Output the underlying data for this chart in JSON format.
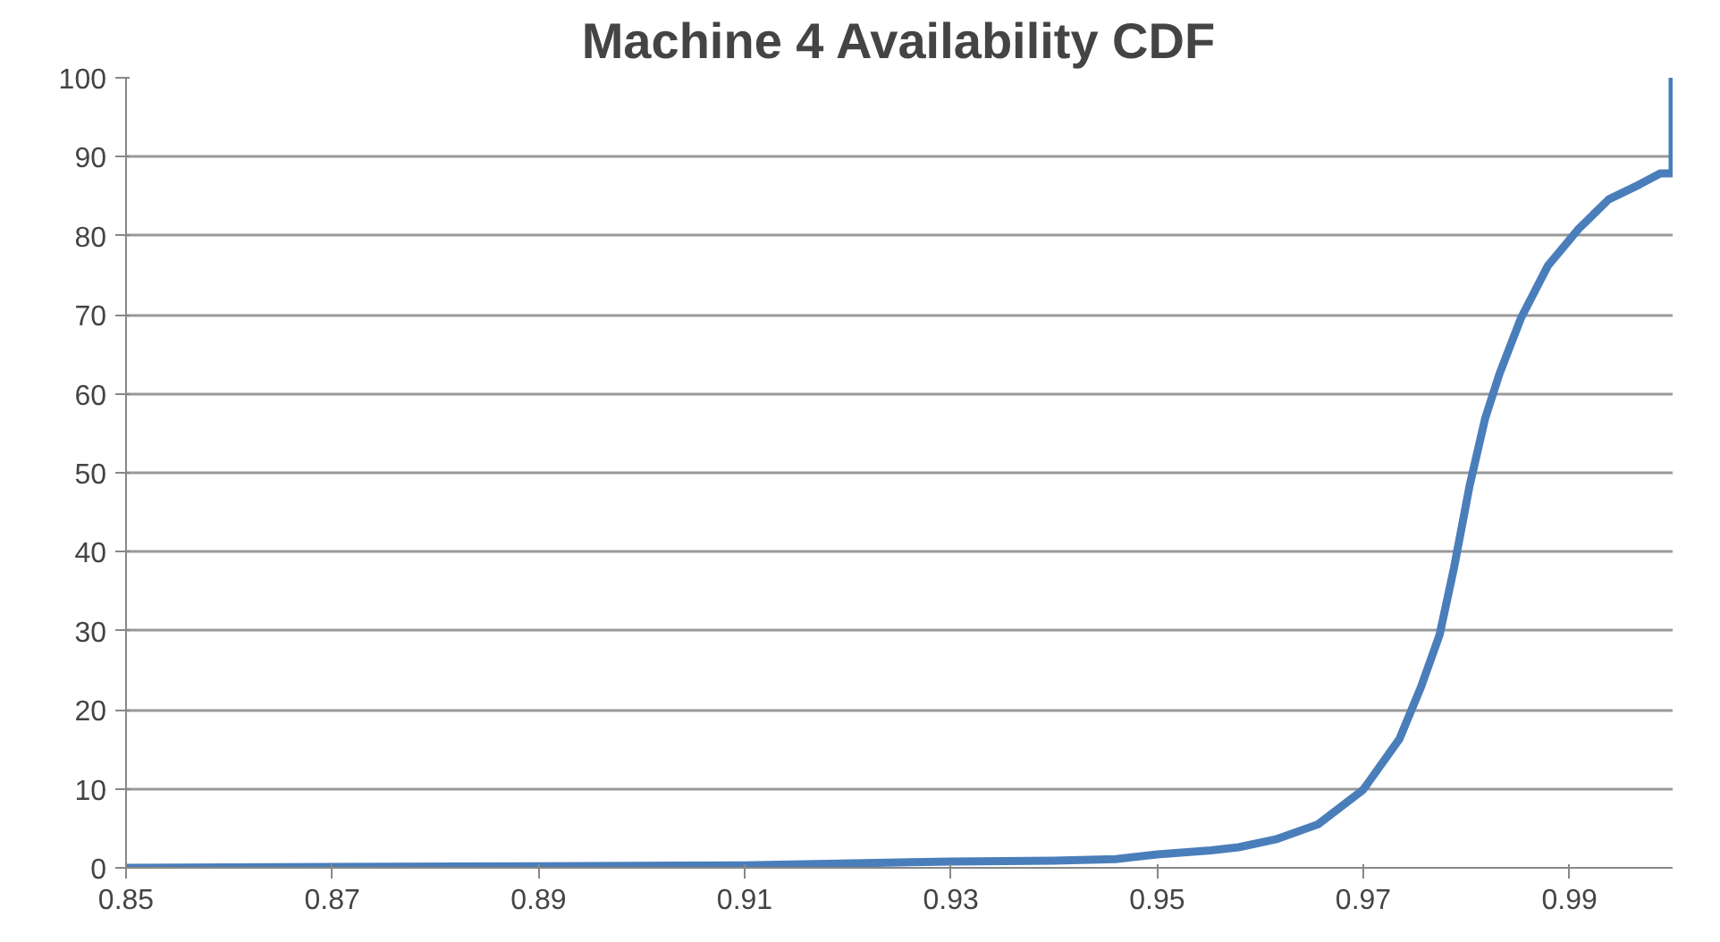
{
  "chart_data": {
    "type": "line",
    "title": "Machine 4 Availability CDF",
    "x": [
      0.85,
      0.87,
      0.89,
      0.91,
      0.93,
      0.94,
      0.946,
      0.95,
      0.9552,
      0.9579,
      0.9615,
      0.9656,
      0.97,
      0.9735,
      0.9756,
      0.9774,
      0.9788,
      0.9803,
      0.9818,
      0.9832,
      0.9853,
      0.9879,
      0.9909,
      0.9938,
      0.9968,
      0.9988,
      1.0,
      1.0
    ],
    "series": [
      {
        "color": "#4a7ebb",
        "values": [
          0,
          0.1,
          0.2,
          0.3,
          0.8,
          0.9,
          1.1,
          1.7,
          2.2,
          2.6,
          3.6,
          5.5,
          9.9,
          16.3,
          22.9,
          29.5,
          38,
          48.3,
          56.8,
          62.5,
          69.6,
          76.2,
          80.9,
          84.6,
          86.5,
          87.9,
          87.9,
          100
        ]
      }
    ],
    "xlim": [
      0.85,
      1.0
    ],
    "xticks": [
      0.85,
      0.87,
      0.89,
      0.91,
      0.93,
      0.95,
      0.97,
      0.99
    ],
    "ylim": [
      0,
      100
    ],
    "yticks": [
      0,
      10,
      20,
      30,
      40,
      50,
      60,
      70,
      80,
      90,
      100
    ],
    "grid": "y",
    "line_style": "solid",
    "marker": "none"
  }
}
